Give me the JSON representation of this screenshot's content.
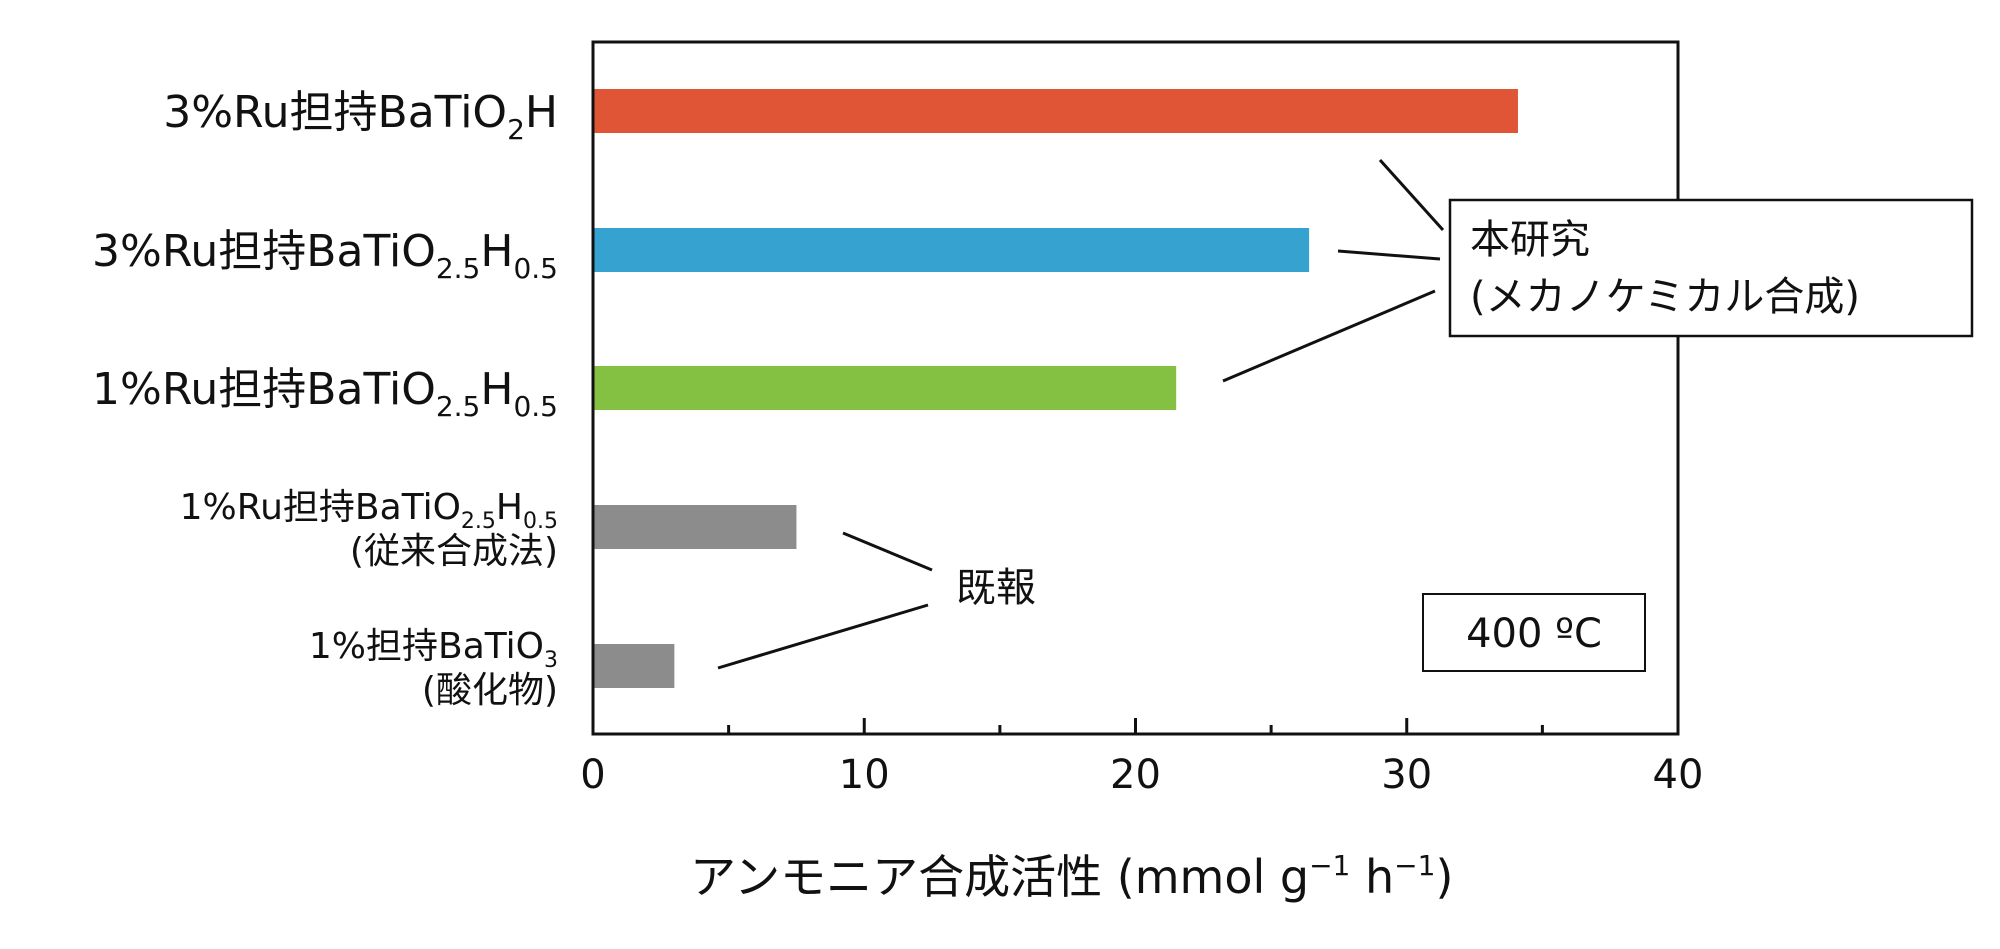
{
  "chart_data": {
    "type": "bar",
    "orientation": "horizontal",
    "categories": [
      {
        "id": "c0",
        "main": "3%Ru担持BaTiO",
        "sub1": "2",
        "mid": "H",
        "sub2": "",
        "line2": ""
      },
      {
        "id": "c1",
        "main": "3%Ru担持BaTiO",
        "sub1": "2.5",
        "mid": "H",
        "sub2": "0.5",
        "line2": ""
      },
      {
        "id": "c2",
        "main": "1%Ru担持BaTiO",
        "sub1": "2.5",
        "mid": "H",
        "sub2": "0.5",
        "line2": ""
      },
      {
        "id": "c3",
        "main": "1%Ru担持BaTiO",
        "sub1": "2.5",
        "mid": "H",
        "sub2": "0.5",
        "line2": "(従来合成法)"
      },
      {
        "id": "c4",
        "main": "1%担持BaTiO",
        "sub1": "3",
        "mid": "",
        "sub2": "",
        "line2": "(酸化物)"
      }
    ],
    "values": [
      34.1,
      26.4,
      21.5,
      7.5,
      3.0
    ],
    "colors": [
      "#e05535",
      "#36a2d0",
      "#84c142",
      "#8c8c8c",
      "#8c8c8c"
    ],
    "xlim": [
      0,
      40
    ],
    "x_major_ticks": [
      0,
      10,
      20,
      30,
      40
    ],
    "x_minor_ticks": [
      5,
      15,
      25,
      35
    ],
    "xlabel": "アンモニア合成活性 (mmol g",
    "xlabel_sup1": "−1",
    "xlabel_mid": " h",
    "xlabel_sup2": "−1",
    "xlabel_end": ")",
    "grid": false,
    "annotations": {
      "this_work_line1": "本研究",
      "this_work_line2": "(メカノケミカル合成)",
      "prior_report": "既報",
      "temperature": "400 ºC"
    }
  }
}
